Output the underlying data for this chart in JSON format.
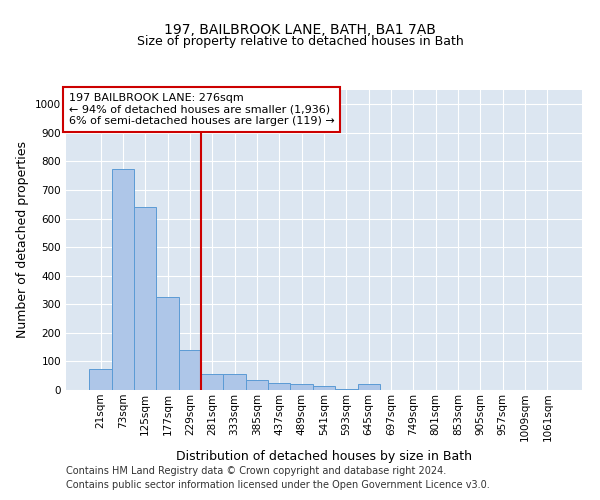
{
  "title": "197, BAILBROOK LANE, BATH, BA1 7AB",
  "subtitle": "Size of property relative to detached houses in Bath",
  "xlabel": "Distribution of detached houses by size in Bath",
  "ylabel": "Number of detached properties",
  "footnote1": "Contains HM Land Registry data © Crown copyright and database right 2024.",
  "footnote2": "Contains public sector information licensed under the Open Government Licence v3.0.",
  "annotation_line1": "197 BAILBROOK LANE: 276sqm",
  "annotation_line2": "← 94% of detached houses are smaller (1,936)",
  "annotation_line3": "6% of semi-detached houses are larger (119) →",
  "bar_color": "#aec6e8",
  "bar_edge_color": "#5b9bd5",
  "bg_color": "#dce6f1",
  "grid_color": "#ffffff",
  "vline_color": "#cc0000",
  "vline_x": 4.5,
  "categories": [
    "21sqm",
    "73sqm",
    "125sqm",
    "177sqm",
    "229sqm",
    "281sqm",
    "333sqm",
    "385sqm",
    "437sqm",
    "489sqm",
    "541sqm",
    "593sqm",
    "645sqm",
    "697sqm",
    "749sqm",
    "801sqm",
    "853sqm",
    "905sqm",
    "957sqm",
    "1009sqm",
    "1061sqm"
  ],
  "values": [
    75,
    775,
    640,
    325,
    140,
    55,
    55,
    35,
    25,
    20,
    15,
    5,
    20,
    0,
    0,
    0,
    0,
    0,
    0,
    0,
    0
  ],
  "ylim": [
    0,
    1050
  ],
  "yticks": [
    0,
    100,
    200,
    300,
    400,
    500,
    600,
    700,
    800,
    900,
    1000
  ],
  "title_fontsize": 10,
  "subtitle_fontsize": 9,
  "axis_label_fontsize": 9,
  "tick_fontsize": 7.5,
  "annotation_fontsize": 8,
  "footnote_fontsize": 7
}
